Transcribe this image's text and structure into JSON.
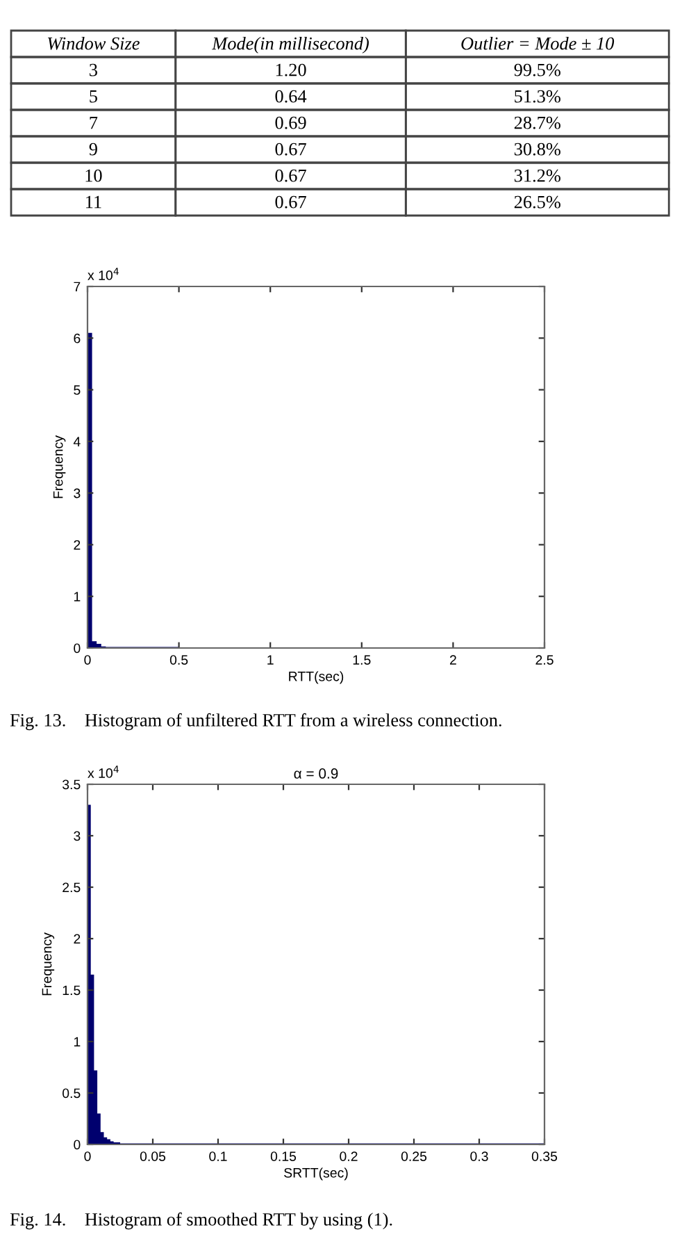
{
  "chart_data": [
    {
      "type": "other",
      "categories": [
        "Window Size",
        "Mode(in millisecond)",
        "Outlier = Mode ± 10"
      ],
      "cell_labels": [
        [
          "3",
          "1.20",
          "99.5%"
        ],
        [
          "5",
          "0.64",
          "51.3%"
        ],
        [
          "7",
          "0.69",
          "28.7%"
        ],
        [
          "9",
          "0.67",
          "30.8%"
        ],
        [
          "10",
          "0.67",
          "31.2%"
        ],
        [
          "11",
          "0.67",
          "26.5%"
        ]
      ]
    },
    {
      "type": "histogram",
      "xlabel": "RTT(sec)",
      "ylabel": "Frequency",
      "color": "#00006e",
      "bins": [
        0,
        0.025,
        0.05,
        0.075,
        0.1,
        0.5,
        1,
        1.5,
        2.5
      ],
      "values": [
        6.1,
        0.13,
        0.08,
        0.03,
        0.02,
        0.01,
        0.01,
        0.01
      ],
      "xlim": [
        0,
        2.5
      ],
      "xticks": [
        0,
        0.5,
        1,
        1.5,
        2,
        2.5
      ],
      "ylim": [
        0,
        7
      ],
      "yticks": [
        0,
        1,
        2,
        3,
        4,
        5,
        6,
        7
      ],
      "grid": false,
      "annotations": [
        "x 10$^{4}$",
        "Fig. 13.    Histogram of unfiltered RTT from a wireless connection."
      ]
    },
    {
      "type": "histogram",
      "title": "α = 0.9",
      "xlabel": "SRTT(sec)",
      "ylabel": "Frequency",
      "color": "#00006e",
      "bins": [
        0,
        0.0025,
        0.005,
        0.0075,
        0.01,
        0.0125,
        0.015,
        0.0175,
        0.02,
        0.0225,
        0.025,
        0.03,
        0.35
      ],
      "values": [
        3.3,
        1.65,
        0.72,
        0.3,
        0.12,
        0.07,
        0.05,
        0.03,
        0.02,
        0.02,
        0.01,
        0.01
      ],
      "xlim": [
        0,
        0.35
      ],
      "xticks": [
        0,
        0.05,
        0.1,
        0.15,
        0.2,
        0.25,
        0.3,
        0.35
      ],
      "ylim": [
        0,
        3.5
      ],
      "yticks": [
        0,
        0.5,
        1,
        1.5,
        2,
        2.5,
        3,
        3.5
      ],
      "grid": false,
      "annotations": [
        "x 10$^{4}$",
        "Fig. 14.    Histogram of smoothed RTT by using (1)."
      ]
    }
  ]
}
